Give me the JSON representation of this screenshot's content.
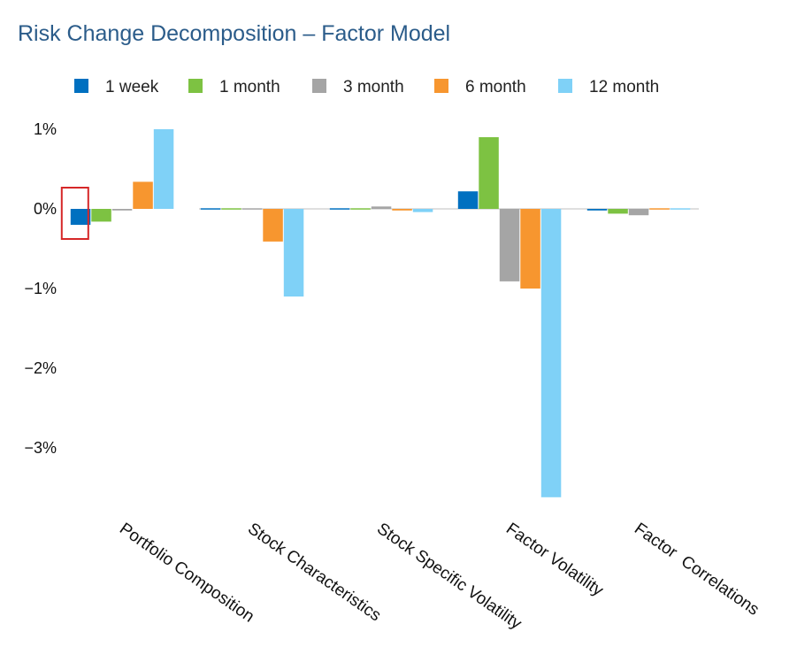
{
  "chart_data": {
    "type": "bar",
    "title": "Risk Change Decomposition – Factor Model",
    "categories": [
      "Portfolio Composition",
      "Stock Characteristics",
      "Stock Specific Volatility",
      "Factor Volatility",
      "Factor  Correlations"
    ],
    "series": [
      {
        "name": "1 week",
        "color": "#0070C0",
        "values": [
          -0.2,
          0.0,
          -0.01,
          0.22,
          -0.02
        ]
      },
      {
        "name": "1 month",
        "color": "#7DC242",
        "values": [
          -0.16,
          0.0,
          0.0,
          0.9,
          -0.06
        ]
      },
      {
        "name": "3 month",
        "color": "#A5A5A5",
        "values": [
          -0.02,
          -0.01,
          0.03,
          -0.91,
          -0.08
        ]
      },
      {
        "name": "6 month",
        "color": "#F7962F",
        "values": [
          0.34,
          -0.41,
          -0.02,
          -1.0,
          -0.01
        ]
      },
      {
        "name": "12 month",
        "color": "#7FD1F7",
        "values": [
          1.0,
          -1.1,
          -0.04,
          -3.62,
          -0.01
        ]
      }
    ],
    "yticks": [
      "1%",
      "0%",
      "−1%",
      "−2%",
      "−3%"
    ],
    "ytick_values": [
      1,
      0,
      -1,
      -2,
      -3
    ],
    "ylim": [
      -3.7,
      1.1
    ],
    "xlabel": "",
    "ylabel": "",
    "grid": false,
    "legend_position": "top",
    "highlight": {
      "category_index": 0,
      "series_index": 0,
      "color": "#D62728"
    }
  }
}
